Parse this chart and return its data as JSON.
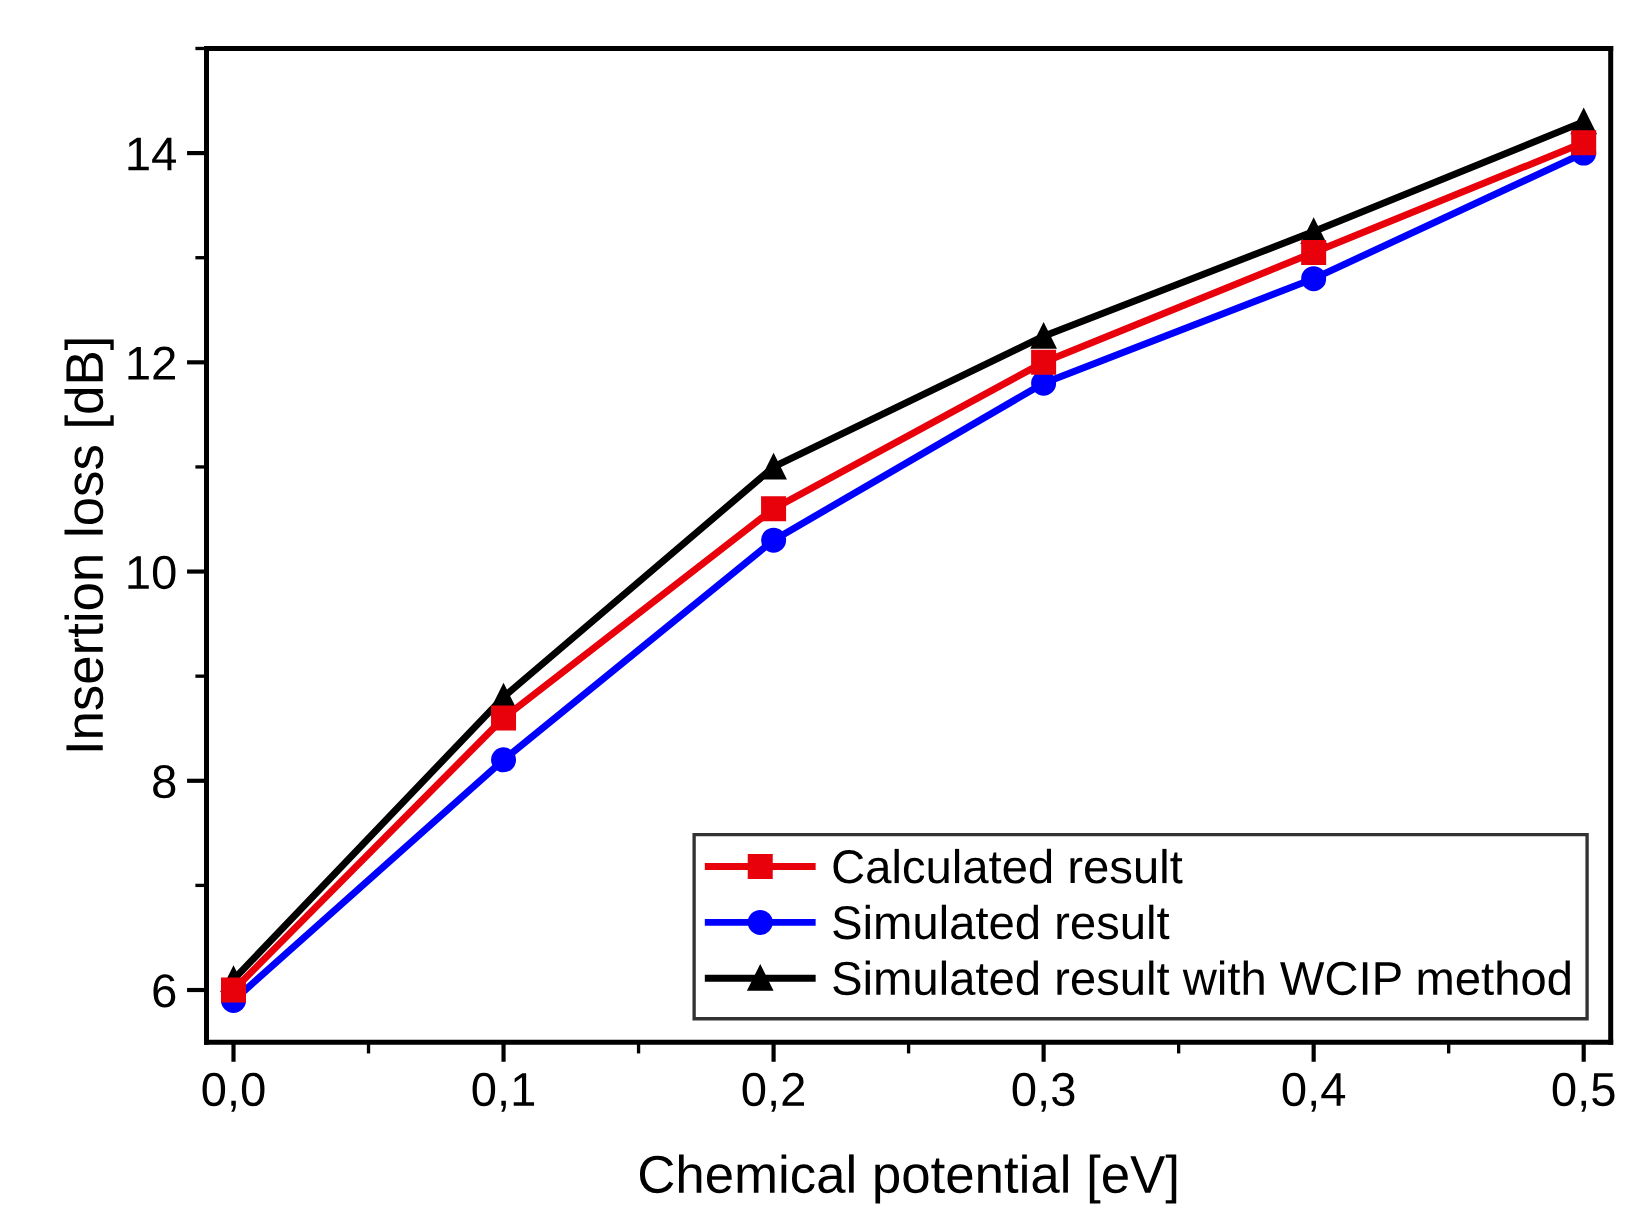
{
  "chart_data": {
    "type": "line",
    "xlabel": "Chemical potential [eV]",
    "ylabel": "Insertion loss [dB]",
    "x": [
      0,
      0.1,
      0.2,
      0.3,
      0.4,
      0.5
    ],
    "series": [
      {
        "name": "Calculated result",
        "color": "#e8000b",
        "marker": "square",
        "values": [
          6.0,
          8.6,
          10.6,
          12.0,
          13.05,
          14.1
        ]
      },
      {
        "name": "Simulated result",
        "color": "#0000ff",
        "marker": "circle",
        "values": [
          5.9,
          8.2,
          10.3,
          11.8,
          12.8,
          14.0
        ]
      },
      {
        "name": "Simulated result with WCIP method",
        "color": "#000000",
        "marker": "triangle",
        "values": [
          6.1,
          8.8,
          11.0,
          12.25,
          13.25,
          14.3
        ]
      }
    ],
    "xlim": [
      -0.01,
      0.51
    ],
    "ylim": [
      5.5,
      15.0
    ],
    "xticks": [
      {
        "value": 0,
        "label": "0,0"
      },
      {
        "value": 0.1,
        "label": "0,1"
      },
      {
        "value": 0.2,
        "label": "0,2"
      },
      {
        "value": 0.3,
        "label": "0,3"
      },
      {
        "value": 0.4,
        "label": "0,4"
      },
      {
        "value": 0.5,
        "label": "0,5"
      }
    ],
    "yticks": [
      6,
      8,
      10,
      12,
      14
    ],
    "grid": false,
    "legend": "bottom right",
    "line_style": "solid"
  }
}
